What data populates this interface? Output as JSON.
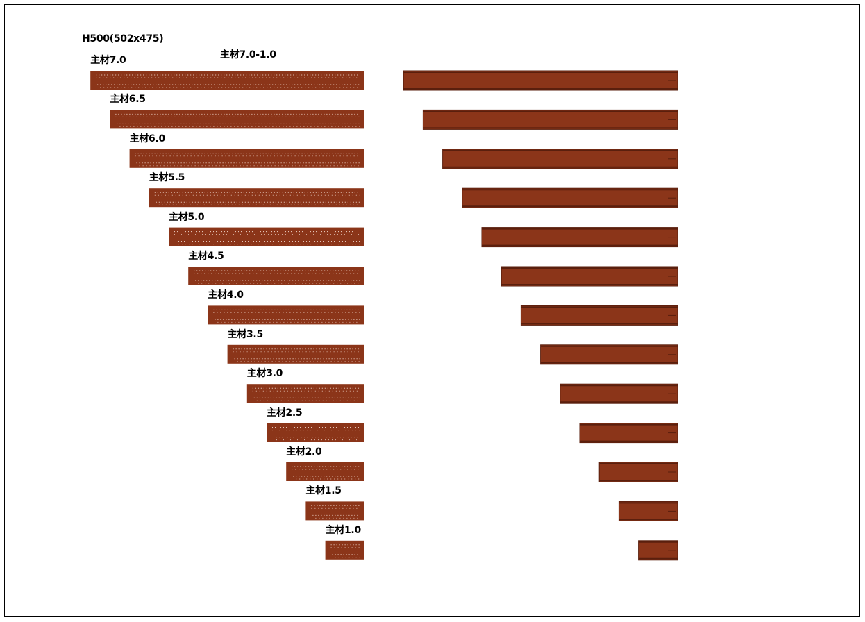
{
  "drawing": {
    "section_label": "H500(502x475)",
    "range_label": "主材7.0-1.0",
    "bar_color": "#8b3519",
    "edge_color": "#5a1f0d",
    "hole_color": "#f1d7cc"
  },
  "members": [
    {
      "label": "主材7.0",
      "length": 7.0
    },
    {
      "label": "主材6.5",
      "length": 6.5
    },
    {
      "label": "主材6.0",
      "length": 6.0
    },
    {
      "label": "主材5.5",
      "length": 5.5
    },
    {
      "label": "主材5.0",
      "length": 5.0
    },
    {
      "label": "主材4.5",
      "length": 4.5
    },
    {
      "label": "主材4.0",
      "length": 4.0
    },
    {
      "label": "主材3.5",
      "length": 3.5
    },
    {
      "label": "主材3.0",
      "length": 3.0
    },
    {
      "label": "主材2.5",
      "length": 2.5
    },
    {
      "label": "主材2.0",
      "length": 2.0
    },
    {
      "label": "主材1.5",
      "length": 1.5
    },
    {
      "label": "主材1.0",
      "length": 1.0
    }
  ]
}
